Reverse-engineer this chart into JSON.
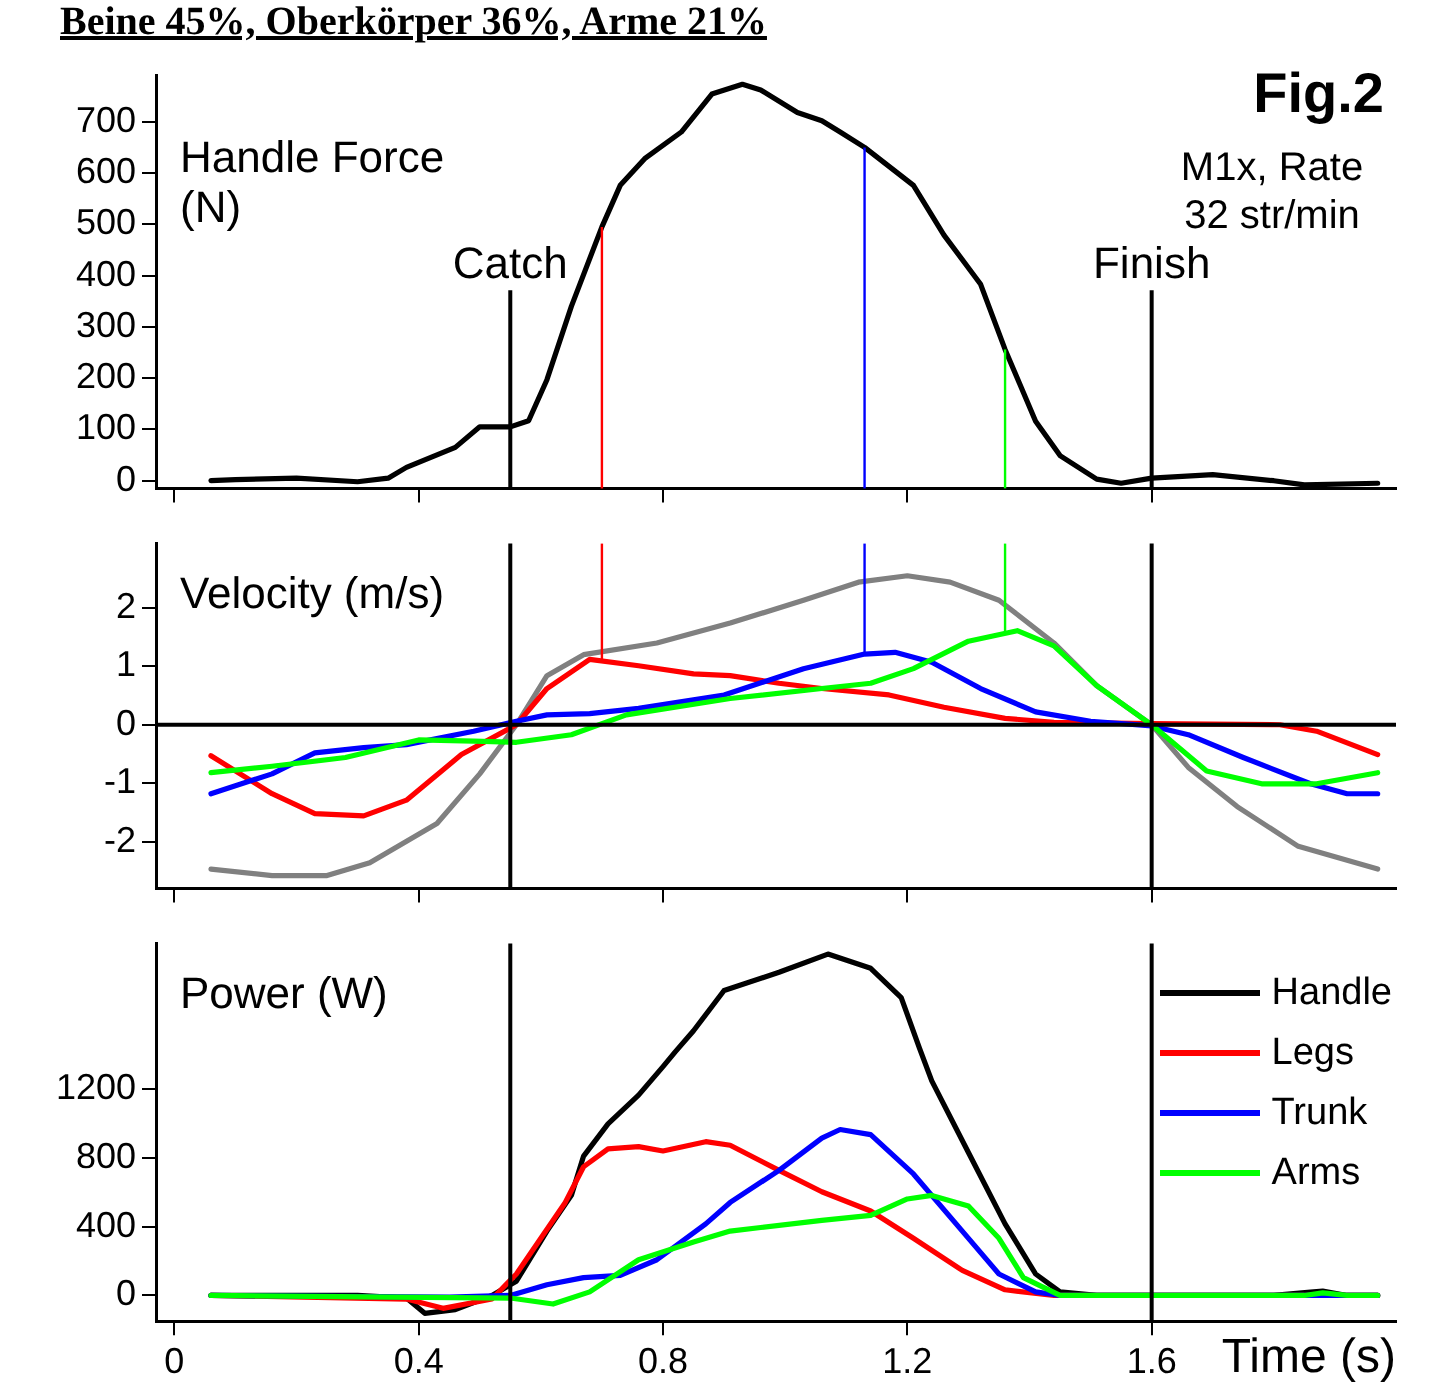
{
  "chart_data": [
    {
      "type": "line",
      "title": "Beine 45%, Oberkörper 36%, Arme 21%",
      "ylabel": "Handle Force (N)",
      "annotations": [
        "Fig.2",
        "M1x, Rate 32 str/min"
      ],
      "series": [
        {
          "color": "#000000",
          "x": [
            0.06,
            0.1,
            0.2,
            0.3,
            0.35,
            0.38,
            0.46,
            0.5,
            0.55,
            0.58,
            0.61,
            0.65,
            0.7,
            0.73,
            0.77,
            0.83,
            0.88,
            0.93,
            0.96,
            1.02,
            1.06,
            1.09,
            1.13,
            1.21,
            1.26,
            1.32,
            1.36,
            1.41,
            1.45,
            1.51,
            1.55,
            1.6,
            1.7,
            1.8,
            1.85,
            1.97
          ],
          "values": [
            0,
            2,
            5,
            -2,
            5,
            26,
            65,
            105,
            105,
            117,
            197,
            340,
            495,
            576,
            628,
            680,
            754,
            773,
            762,
            718,
            702,
            680,
            650,
            576,
            479,
            383,
            256,
            116,
            49,
            3,
            -5,
            5,
            12,
            0,
            -8,
            -5
          ]
        }
      ],
      "xlim": [
        -0.03,
        2.0
      ],
      "xticks": [
        0,
        0.4,
        0.8,
        1.2,
        1.6
      ],
      "ylim": [
        -15,
        790
      ],
      "yticks": [
        0,
        100,
        200,
        300,
        400,
        500,
        600,
        700
      ],
      "tick_labels": "y",
      "ref_lines": [
        {
          "axis": "x",
          "value": 0.55,
          "label": "Catch"
        },
        {
          "axis": "x",
          "value": 1.6,
          "label": "Finish"
        },
        {
          "axis": "x",
          "value": 0.7,
          "color": "#ff0000"
        },
        {
          "axis": "x",
          "value": 1.13,
          "color": "#0000ff"
        },
        {
          "axis": "x",
          "value": 1.36,
          "color": "#00ff00"
        }
      ]
    },
    {
      "type": "line",
      "ylabel": "Velocity (m/s)",
      "series": [
        {
          "color": "#808080",
          "x": [
            0.06,
            0.16,
            0.25,
            0.32,
            0.43,
            0.5,
            0.56,
            0.61,
            0.67,
            0.79,
            0.91,
            1.03,
            1.12,
            1.2,
            1.27,
            1.35,
            1.44,
            1.51,
            1.6,
            1.66,
            1.74,
            1.84,
            1.97
          ],
          "values": [
            -2.47,
            -2.58,
            -2.58,
            -2.36,
            -1.69,
            -0.84,
            0,
            0.84,
            1.2,
            1.4,
            1.74,
            2.13,
            2.44,
            2.55,
            2.44,
            2.13,
            1.4,
            0.67,
            0,
            -0.73,
            -1.4,
            -2.08,
            -2.47
          ]
        },
        {
          "color": "#ff0000",
          "x": [
            0.06,
            0.16,
            0.23,
            0.31,
            0.38,
            0.47,
            0.56,
            0.61,
            0.68,
            0.76,
            0.85,
            0.91,
            0.99,
            1.06,
            1.17,
            1.26,
            1.36,
            1.44,
            1.6,
            1.81,
            1.87,
            1.97
          ],
          "values": [
            -0.53,
            -1.18,
            -1.52,
            -1.56,
            -1.29,
            -0.51,
            0,
            0.62,
            1.12,
            1.01,
            0.87,
            0.84,
            0.71,
            0.62,
            0.51,
            0.3,
            0.11,
            0.04,
            0.02,
            0,
            -0.11,
            -0.51
          ]
        },
        {
          "color": "#0000ff",
          "x": [
            0.06,
            0.16,
            0.23,
            0.31,
            0.38,
            0.49,
            0.56,
            0.61,
            0.68,
            0.76,
            0.9,
            1.03,
            1.13,
            1.18,
            1.24,
            1.32,
            1.41,
            1.5,
            1.6,
            1.66,
            1.75,
            1.86,
            1.92,
            1.97
          ],
          "values": [
            -1.18,
            -0.84,
            -0.48,
            -0.39,
            -0.34,
            -0.11,
            0.06,
            0.17,
            0.19,
            0.28,
            0.51,
            0.96,
            1.21,
            1.24,
            1.07,
            0.62,
            0.22,
            0.06,
            -0.02,
            -0.17,
            -0.56,
            -1.01,
            -1.18,
            -1.18
          ]
        },
        {
          "color": "#00ff00",
          "x": [
            0.06,
            0.16,
            0.28,
            0.4,
            0.49,
            0.56,
            0.65,
            0.74,
            0.91,
            1.06,
            1.14,
            1.21,
            1.3,
            1.38,
            1.44,
            1.51,
            1.6,
            1.69,
            1.78,
            1.87,
            1.97
          ],
          "values": [
            -0.82,
            -0.71,
            -0.56,
            -0.26,
            -0.28,
            -0.3,
            -0.17,
            0.17,
            0.45,
            0.62,
            0.71,
            0.96,
            1.43,
            1.61,
            1.35,
            0.67,
            0,
            -0.79,
            -1.01,
            -1.01,
            -0.82
          ]
        }
      ],
      "xlim": [
        -0.03,
        2.0
      ],
      "xticks": [
        0,
        0.4,
        0.8,
        1.2,
        1.6
      ],
      "ylim": [
        -2.8,
        3.1
      ],
      "yticks": [
        -2,
        -1,
        0,
        1,
        2
      ],
      "tick_labels": "y",
      "ref_lines": [
        {
          "axis": "y",
          "value": 0
        },
        {
          "axis": "x",
          "value": 0.55
        },
        {
          "axis": "x",
          "value": 1.6
        },
        {
          "axis": "x",
          "value": 0.7,
          "color": "#ff0000"
        },
        {
          "axis": "x",
          "value": 1.13,
          "color": "#0000ff"
        },
        {
          "axis": "x",
          "value": 1.36,
          "color": "#00ff00"
        }
      ]
    },
    {
      "type": "line",
      "ylabel": "Power (W)",
      "xlabel": "Time (s)",
      "legend": "right",
      "series": [
        {
          "name": "Handle",
          "color": "#000000",
          "x": [
            0.06,
            0.3,
            0.38,
            0.41,
            0.46,
            0.52,
            0.56,
            0.61,
            0.65,
            0.67,
            0.71,
            0.76,
            0.8,
            0.82,
            0.85,
            0.9,
            0.99,
            1.07,
            1.14,
            1.19,
            1.22,
            1.24,
            1.3,
            1.36,
            1.41,
            1.45,
            1.51,
            1.8,
            1.86,
            1.88,
            1.92,
            1.97
          ],
          "values": [
            0,
            0,
            -15,
            -104,
            -83,
            0,
            83,
            375,
            583,
            812,
            1000,
            1167,
            1333,
            1419,
            1542,
            1777,
            1883,
            1989,
            1906,
            1735,
            1440,
            1250,
            833,
            417,
            125,
            21,
            0,
            0,
            20,
            25,
            0,
            0
          ]
        },
        {
          "name": "Legs",
          "color": "#ff0000",
          "x": [
            0.06,
            0.38,
            0.44,
            0.52,
            0.56,
            0.64,
            0.67,
            0.71,
            0.76,
            0.8,
            0.87,
            0.91,
            0.99,
            1.06,
            1.14,
            1.21,
            1.29,
            1.36,
            1.44,
            1.97
          ],
          "values": [
            0,
            -21,
            -75,
            -21,
            125,
            542,
            750,
            854,
            867,
            842,
            896,
            875,
            729,
            604,
            492,
            333,
            146,
            33,
            0,
            0
          ]
        },
        {
          "name": "Trunk",
          "color": "#0000ff",
          "x": [
            0.06,
            0.45,
            0.55,
            0.61,
            0.67,
            0.73,
            0.79,
            0.87,
            0.91,
            0.99,
            1.06,
            1.09,
            1.14,
            1.21,
            1.29,
            1.35,
            1.41,
            1.45,
            1.97
          ],
          "values": [
            0,
            -10,
            0,
            62,
            104,
            117,
            208,
            417,
            542,
            729,
            917,
            967,
            937,
            708,
            375,
            125,
            21,
            0,
            0
          ]
        },
        {
          "name": "Arms",
          "color": "#00ff00",
          "x": [
            0.06,
            0.55,
            0.62,
            0.68,
            0.76,
            0.85,
            0.91,
            0.96,
            1.06,
            1.14,
            1.2,
            1.24,
            1.3,
            1.35,
            1.39,
            1.45,
            1.85,
            1.88,
            1.92,
            1.97
          ],
          "values": [
            0,
            -15,
            -50,
            21,
            208,
            312,
            375,
            396,
            437,
            467,
            562,
            583,
            521,
            333,
            104,
            0,
            0,
            15,
            0,
            0
          ]
        }
      ],
      "xlim": [
        -0.03,
        2.0
      ],
      "xticks": [
        0,
        0.4,
        0.8,
        1.2,
        1.6
      ],
      "ylim": [
        -150,
        2050
      ],
      "yticks": [
        0,
        400,
        800,
        1200
      ],
      "ref_lines": [
        {
          "axis": "x",
          "value": 0.55
        },
        {
          "axis": "x",
          "value": 1.6
        }
      ]
    }
  ]
}
